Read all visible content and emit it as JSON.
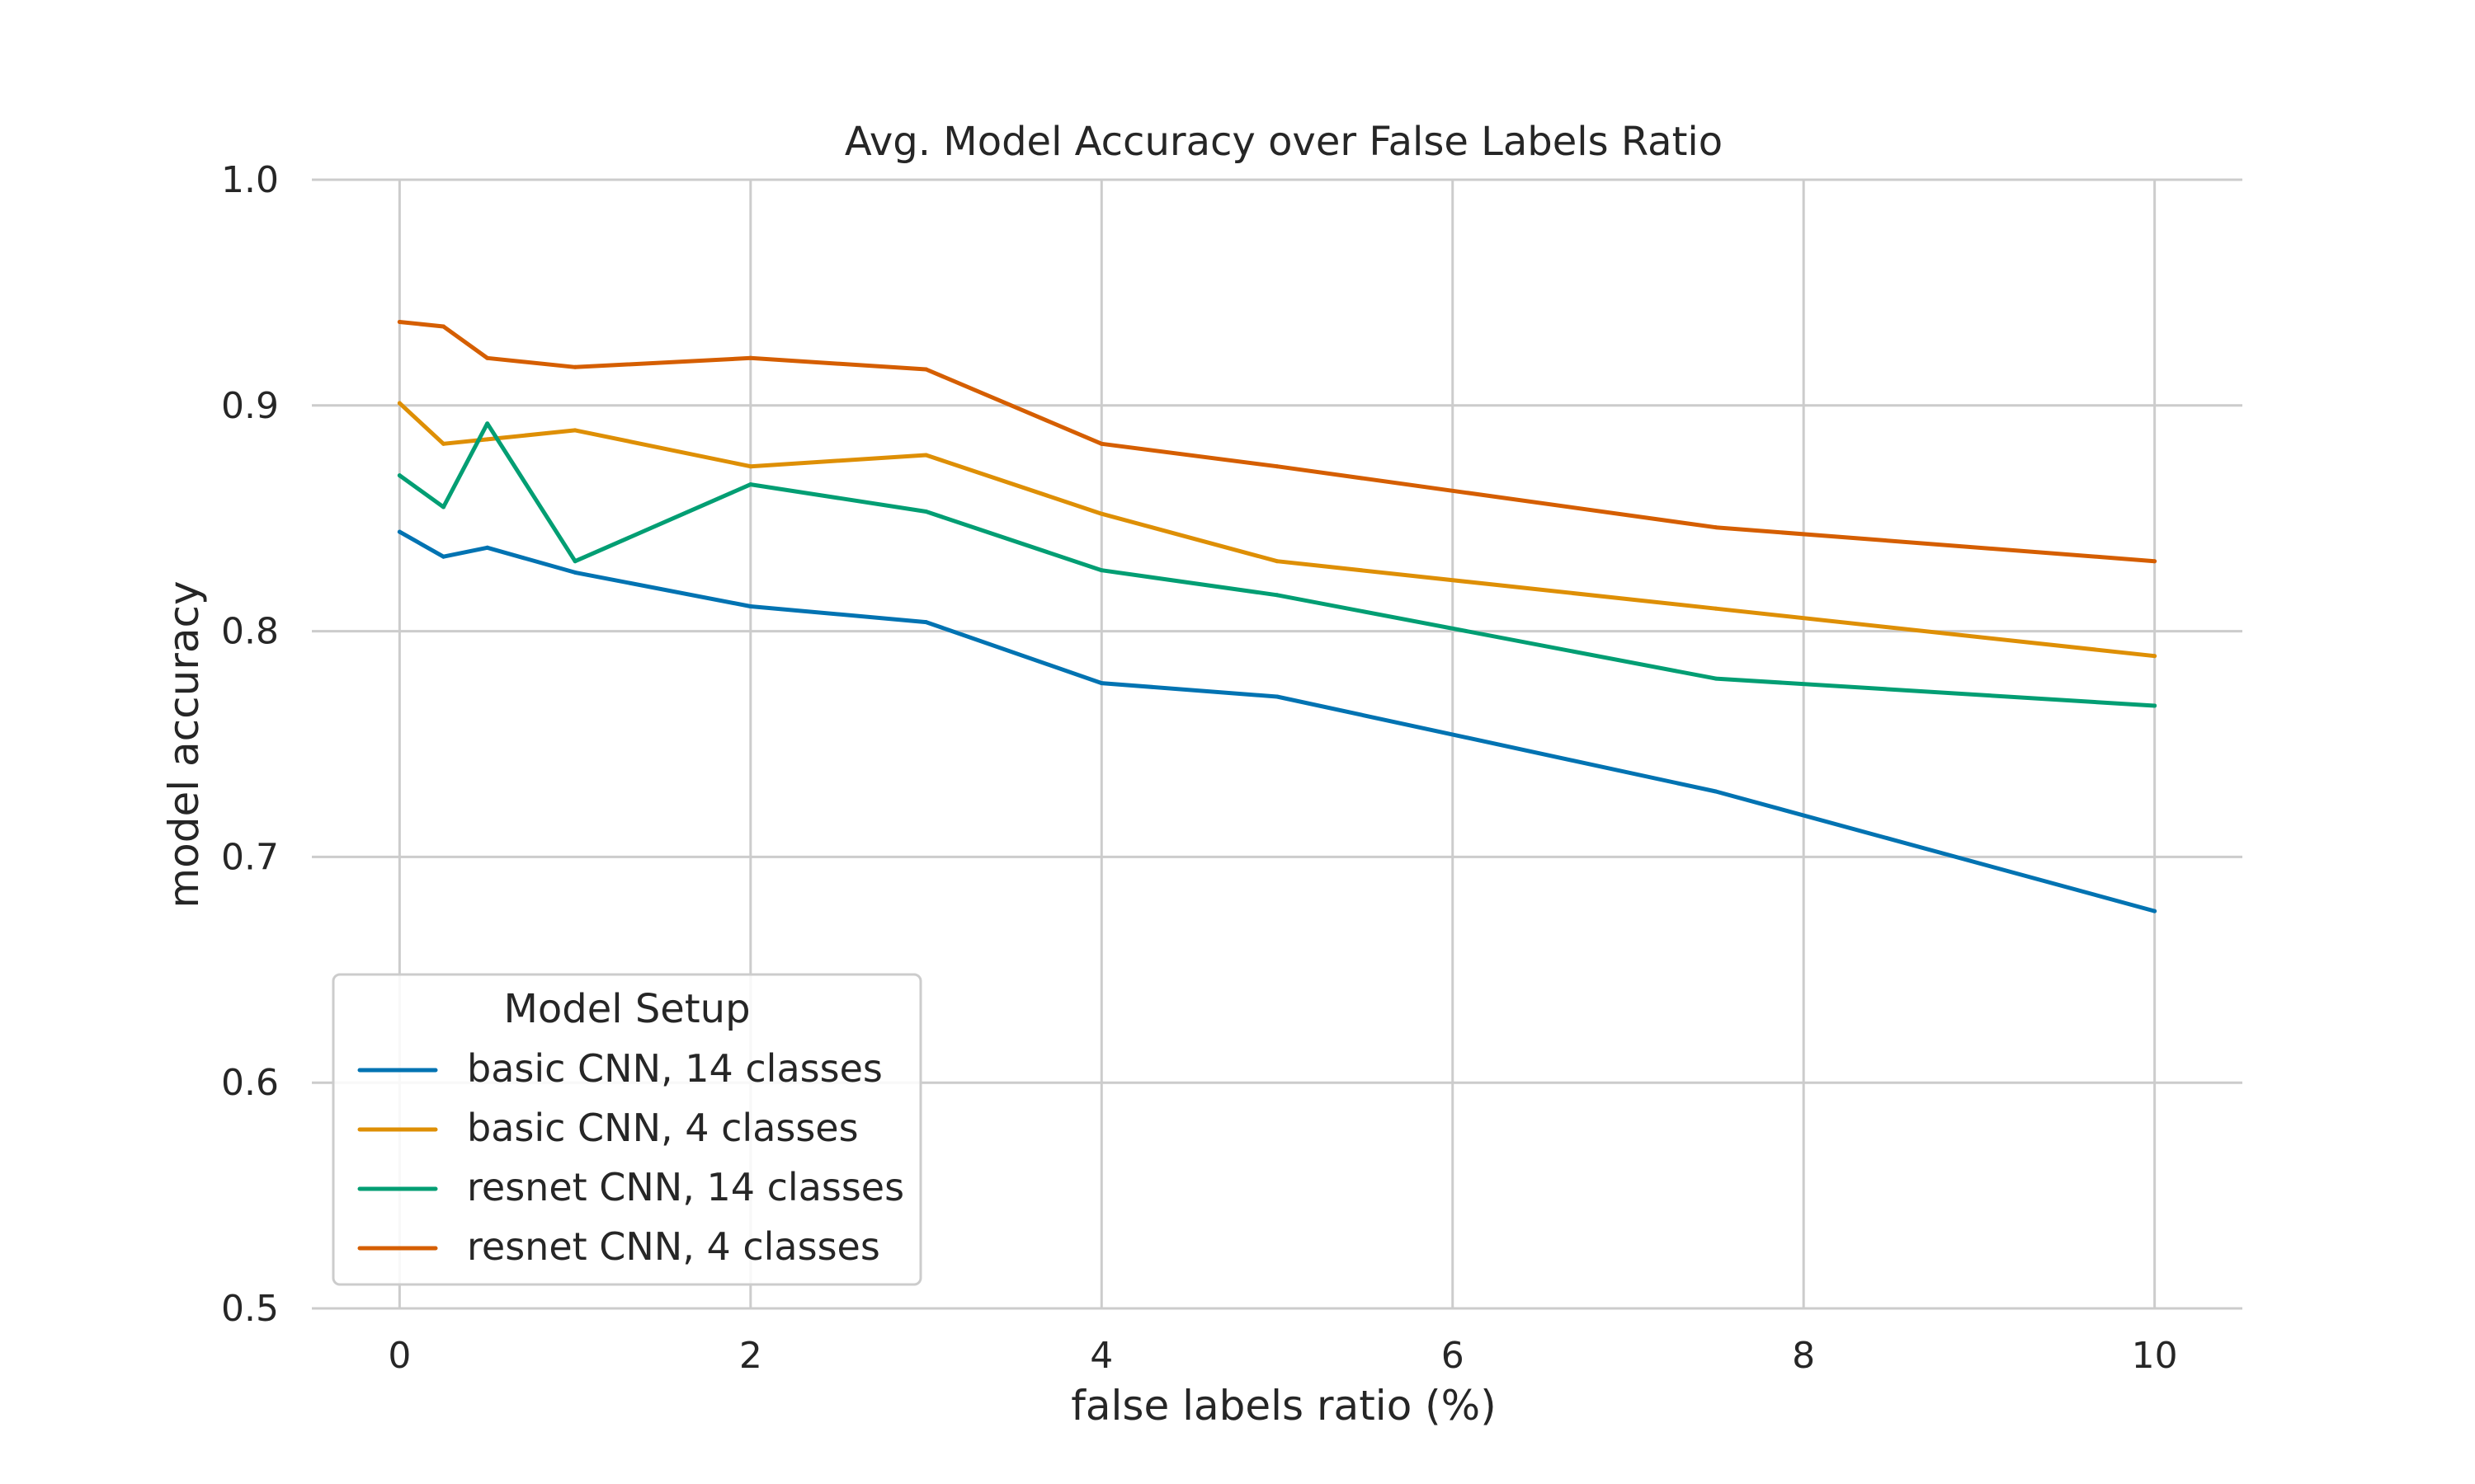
{
  "chart_data": {
    "type": "line",
    "title": "Avg. Model Accuracy over False Labels Ratio",
    "xlabel": "false labels ratio (%)",
    "ylabel": "model accuracy",
    "xlim": [
      -0.5,
      10.5
    ],
    "ylim": [
      0.5,
      1.0
    ],
    "xticks": [
      0,
      2,
      4,
      6,
      8,
      10
    ],
    "xtick_labels": [
      "0",
      "2",
      "4",
      "6",
      "8",
      "10"
    ],
    "yticks": [
      0.5,
      0.6,
      0.7,
      0.8,
      0.9,
      1.0
    ],
    "ytick_labels": [
      "0.5",
      "0.6",
      "0.7",
      "0.8",
      "0.9",
      "1.0"
    ],
    "grid": true,
    "legend": {
      "title": "Model Setup",
      "placement": "lower-left"
    },
    "series": [
      {
        "name": "basic CNN, 14 classes",
        "color": "#0173b2",
        "x": [
          0,
          0.25,
          0.5,
          1,
          2,
          3,
          4,
          5,
          7.5,
          10
        ],
        "y": [
          0.844,
          0.833,
          0.837,
          0.826,
          0.811,
          0.804,
          0.777,
          0.771,
          0.729,
          0.676
        ]
      },
      {
        "name": "basic CNN, 4 classes",
        "color": "#de8f05",
        "x": [
          0,
          0.25,
          0.5,
          1,
          2,
          3,
          4,
          5,
          7.5,
          10
        ],
        "y": [
          0.901,
          0.883,
          0.885,
          0.889,
          0.873,
          0.878,
          0.852,
          0.831,
          0.81,
          0.789
        ]
      },
      {
        "name": "resnet CNN, 14 classes",
        "color": "#029e73",
        "x": [
          0,
          0.25,
          0.5,
          1,
          2,
          3,
          4,
          5,
          7.5,
          10
        ],
        "y": [
          0.869,
          0.855,
          0.892,
          0.831,
          0.865,
          0.853,
          0.827,
          0.816,
          0.779,
          0.767
        ]
      },
      {
        "name": "resnet CNN, 4 classes",
        "color": "#d55e00",
        "x": [
          0,
          0.25,
          0.5,
          1,
          2,
          3,
          4,
          5,
          7.5,
          10
        ],
        "y": [
          0.937,
          0.935,
          0.921,
          0.917,
          0.921,
          0.916,
          0.883,
          0.873,
          0.846,
          0.831
        ]
      }
    ]
  }
}
